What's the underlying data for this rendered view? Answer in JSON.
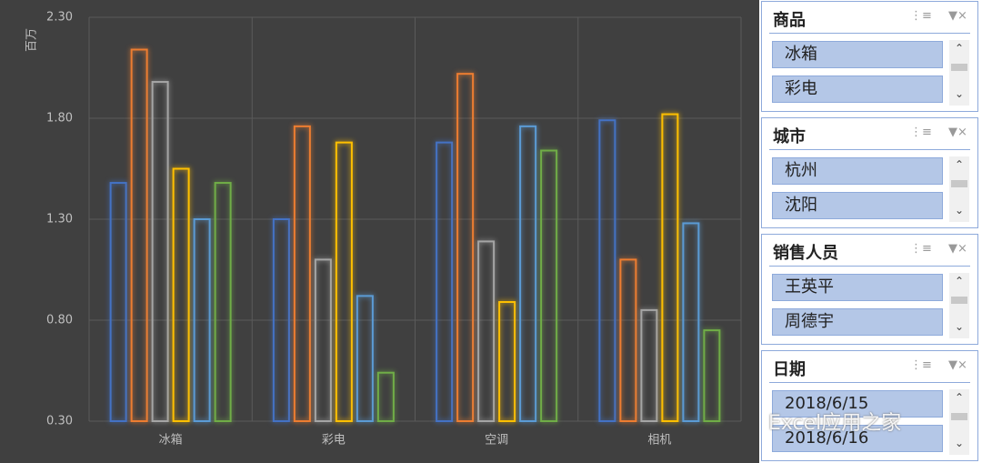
{
  "chart_data": {
    "type": "bar",
    "y_label": "百万",
    "categories": [
      "冰箱",
      "彩电",
      "空调",
      "相机"
    ],
    "series": [
      {
        "color": "#4472c4",
        "values": [
          1.48,
          1.3,
          1.68,
          1.79
        ]
      },
      {
        "color": "#ed7d31",
        "values": [
          2.14,
          1.76,
          2.02,
          1.1
        ]
      },
      {
        "color": "#a5a5a5",
        "values": [
          1.98,
          1.1,
          1.19,
          0.85
        ]
      },
      {
        "color": "#ffc000",
        "values": [
          1.55,
          1.68,
          0.89,
          1.82
        ]
      },
      {
        "color": "#5b9bd5",
        "values": [
          1.3,
          0.92,
          1.76,
          1.28
        ]
      },
      {
        "color": "#70ad47",
        "values": [
          1.48,
          0.54,
          1.64,
          0.75
        ]
      }
    ],
    "ylim": [
      0.3,
      2.3
    ],
    "yticks": [
      {
        "value": 0.3,
        "label": "0.30"
      },
      {
        "value": 0.8,
        "label": "0.80"
      },
      {
        "value": 1.3,
        "label": "1.30"
      },
      {
        "value": 1.8,
        "label": "1.80"
      },
      {
        "value": 2.3,
        "label": "2.30"
      }
    ],
    "grid": true
  },
  "slicers": [
    {
      "title": "商品",
      "items": [
        "冰箱",
        "彩电"
      ]
    },
    {
      "title": "城市",
      "items": [
        "杭州",
        "沈阳"
      ]
    },
    {
      "title": "销售人员",
      "items": [
        "王英平",
        "周德宇"
      ]
    },
    {
      "title": "日期",
      "items": [
        "2018/6/15",
        "2018/6/16"
      ]
    }
  ],
  "watermark": "Excel应用之家"
}
